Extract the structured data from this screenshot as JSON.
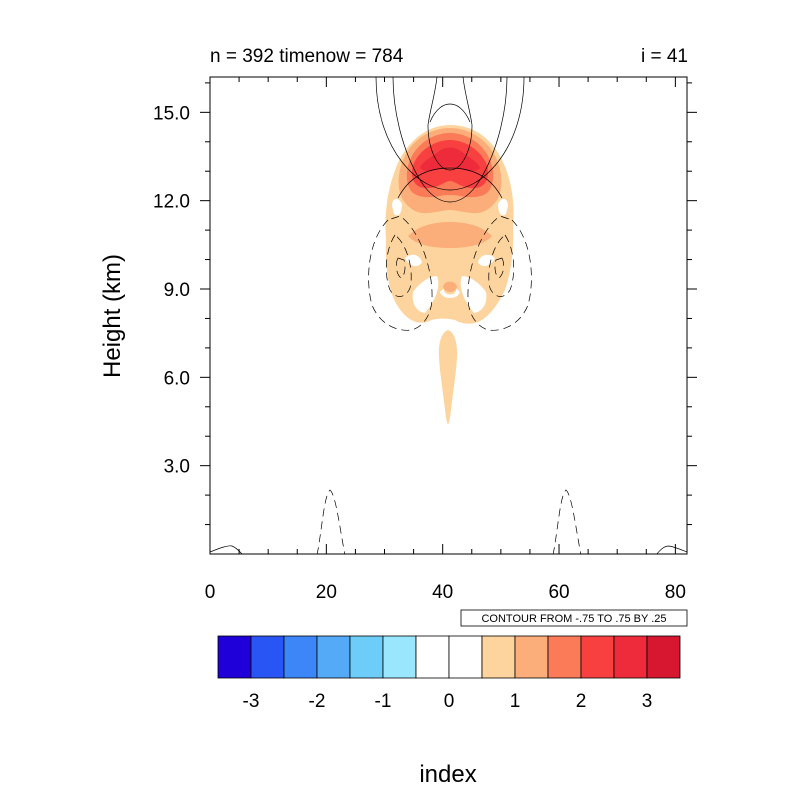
{
  "chart_data": {
    "type": "contour",
    "title_left": "n = 392 timenow = 784",
    "title_right": "i = 41",
    "ylabel": "Height (km)",
    "xlabel": "index",
    "xlim": [
      0,
      82
    ],
    "ylim": [
      0,
      16.2
    ],
    "x_ticks": [
      "0",
      "20",
      "40",
      "60",
      "80"
    ],
    "y_ticks": [
      "3.0",
      "6.0",
      "9.0",
      "12.0",
      "15.0"
    ],
    "contour_info": "CONTOUR FROM -.75 TO .75 BY .25",
    "colorbar": {
      "labels": [
        "-3",
        "-2",
        "-1",
        "0",
        "1",
        "2",
        "3"
      ],
      "colors": [
        "#1f00d8",
        "#2a55f5",
        "#3c86f8",
        "#55aaf8",
        "#6ecdf8",
        "#9ae6fc",
        "#ffffff",
        "#ffffff",
        "#fdd49e",
        "#fcae7a",
        "#fb7a58",
        "#f84040",
        "#ee2b3a",
        "#d7172f"
      ]
    },
    "filled_regions": [
      {
        "color": "#fdd49e",
        "desc": "outer positive envelope, ~1",
        "x_range": [
          30,
          51
        ],
        "y_range": [
          7.9,
          14.6
        ]
      },
      {
        "color": "#fcae7a",
        "desc": "level ~1.5",
        "x_range": [
          33,
          49
        ],
        "y_range": [
          11.0,
          14.4
        ]
      },
      {
        "color": "#fb7a58",
        "desc": "level ~2",
        "x_range": [
          35,
          48
        ],
        "y_range": [
          12.2,
          14.3
        ]
      },
      {
        "color": "#f84040",
        "desc": "level ~2.5",
        "x_range": [
          36,
          47
        ],
        "y_range": [
          12.6,
          14.0
        ]
      },
      {
        "color": "#ee2b3a",
        "desc": "core ~3",
        "x_range": [
          39,
          44
        ],
        "y_range": [
          13.1,
          13.7
        ]
      },
      {
        "color": "#fdd49e",
        "desc": "lower spike",
        "x_range": [
          40,
          42
        ],
        "y_range": [
          4.5,
          7.4
        ]
      }
    ]
  }
}
